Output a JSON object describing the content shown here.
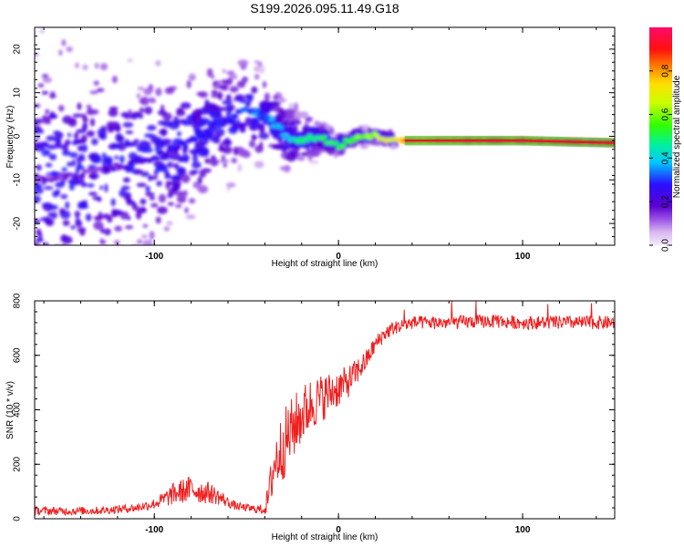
{
  "title": "S199.2026.095.11.49.G18",
  "chart_data": [
    {
      "type": "heatmap",
      "title": "S199.2026.095.11.49.G18",
      "xlabel": "Height of straight line (km)",
      "ylabel": "Frequency (Hz)",
      "xlim": [
        -165,
        150
      ],
      "ylim": [
        -25,
        25
      ],
      "xticks": [
        -100,
        0,
        100
      ],
      "yticks": [
        20,
        10,
        0,
        -10,
        -20
      ],
      "colorbar": {
        "label": "Normalized spectral amplitude",
        "range": [
          0.0,
          1.0
        ],
        "ticks": [
          0.0,
          0.2,
          0.4,
          0.6,
          0.8
        ],
        "tick_labels": [
          "0.0",
          "0.2",
          "0.4",
          "0.6",
          "0.8"
        ]
      },
      "ridge_trace": {
        "x": [
          -165,
          -140,
          -120,
          -100,
          -80,
          -60,
          -50,
          -42,
          -35,
          -28,
          -20,
          -10,
          0,
          10,
          20,
          35,
          60,
          100,
          150
        ],
        "frequency": [
          -10,
          -9,
          -7,
          -5,
          -1,
          4,
          6,
          5,
          3,
          0,
          -1,
          0,
          -2,
          0,
          0,
          -1,
          -1,
          -1,
          -1.5
        ],
        "amplitude": [
          0.1,
          0.12,
          0.15,
          0.2,
          0.22,
          0.25,
          0.28,
          0.3,
          0.35,
          0.4,
          0.45,
          0.5,
          0.55,
          0.6,
          0.65,
          0.8,
          0.9,
          0.92,
          0.95
        ]
      }
    },
    {
      "type": "line",
      "xlabel": "Height of straight line (km)",
      "ylabel": "SNR (10 * v/v)",
      "xlim": [
        -165,
        150
      ],
      "ylim": [
        0,
        800
      ],
      "xticks": [
        -100,
        0,
        100
      ],
      "yticks": [
        0,
        200,
        400,
        600,
        800
      ],
      "series": [
        {
          "name": "SNR",
          "color": "#ee2020",
          "x": [
            -165,
            -150,
            -130,
            -110,
            -100,
            -95,
            -90,
            -85,
            -80,
            -75,
            -70,
            -65,
            -60,
            -55,
            -50,
            -45,
            -40,
            -38,
            -35,
            -30,
            -25,
            -20,
            -15,
            -10,
            -5,
            0,
            5,
            10,
            15,
            20,
            25,
            30,
            40,
            60,
            80,
            100,
            120,
            150
          ],
          "mean": [
            30,
            28,
            30,
            40,
            55,
            70,
            90,
            100,
            110,
            100,
            95,
            80,
            60,
            45,
            40,
            35,
            35,
            80,
            200,
            270,
            330,
            380,
            420,
            440,
            460,
            480,
            500,
            540,
            580,
            640,
            680,
            700,
            720,
            720,
            725,
            720,
            720,
            720
          ],
          "amplitude": [
            15,
            15,
            15,
            15,
            20,
            30,
            40,
            45,
            50,
            45,
            40,
            30,
            20,
            15,
            15,
            15,
            20,
            60,
            110,
            130,
            120,
            110,
            100,
            90,
            80,
            70,
            60,
            50,
            40,
            30,
            30,
            25,
            25,
            25,
            25,
            25,
            25,
            25
          ]
        }
      ]
    }
  ]
}
